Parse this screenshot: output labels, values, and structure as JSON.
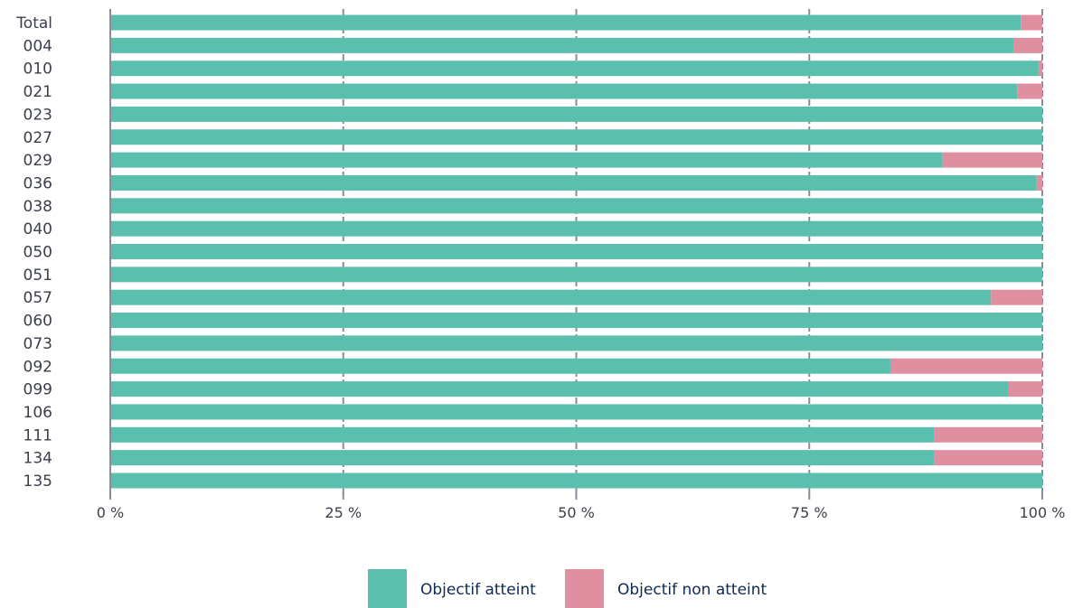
{
  "chart_data": {
    "type": "bar",
    "orientation": "horizontal",
    "stacked": true,
    "categories": [
      "Total",
      "004",
      "010",
      "021",
      "023",
      "027",
      "029",
      "036",
      "038",
      "040",
      "050",
      "051",
      "057",
      "060",
      "073",
      "092",
      "099",
      "106",
      "111",
      "134",
      "135"
    ],
    "series": [
      {
        "name": "Objectif atteint",
        "color": "#5bbfae",
        "values": [
          97.7,
          96.9,
          99.6,
          97.3,
          100,
          100,
          89.3,
          99.4,
          100,
          100,
          100,
          100,
          94.5,
          100,
          100,
          83.7,
          96.4,
          100,
          88.4,
          88.4,
          100
        ]
      },
      {
        "name": "Objectif non atteint",
        "color": "#e08fa0",
        "values": [
          2.3,
          3.1,
          0.4,
          2.7,
          0,
          0,
          10.7,
          0.6,
          0,
          0,
          0,
          0,
          5.5,
          0,
          0,
          16.3,
          3.6,
          0,
          11.6,
          11.6,
          0
        ]
      }
    ],
    "x_ticks": [
      "0 %",
      "25 %",
      "50 %",
      "75 %",
      "100 %"
    ],
    "xlim": [
      0,
      100
    ],
    "grid": true,
    "legend_position": "bottom-center",
    "title": "",
    "xlabel": "",
    "ylabel": ""
  },
  "colors": {
    "grid": "#8a8d99",
    "axis": "#8a8d99"
  }
}
